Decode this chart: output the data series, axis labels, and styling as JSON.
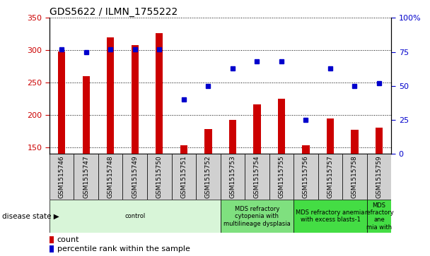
{
  "title": "GDS5622 / ILMN_1755222",
  "samples": [
    "GSM1515746",
    "GSM1515747",
    "GSM1515748",
    "GSM1515749",
    "GSM1515750",
    "GSM1515751",
    "GSM1515752",
    "GSM1515753",
    "GSM1515754",
    "GSM1515755",
    "GSM1515756",
    "GSM1515757",
    "GSM1515758",
    "GSM1515759"
  ],
  "counts": [
    298,
    260,
    320,
    308,
    326,
    153,
    178,
    192,
    216,
    225,
    153,
    194,
    177,
    180
  ],
  "percentile_ranks": [
    77,
    75,
    77,
    77,
    77,
    40,
    50,
    63,
    68,
    68,
    25,
    63,
    50,
    52
  ],
  "ylim_left": [
    140,
    350
  ],
  "ylim_right": [
    0,
    100
  ],
  "yticks_left": [
    150,
    200,
    250,
    300,
    350
  ],
  "yticks_right": [
    0,
    25,
    50,
    75,
    100
  ],
  "bar_color": "#cc0000",
  "dot_color": "#0000cc",
  "tick_box_color": "#d0d0d0",
  "plot_bg": "#ffffff",
  "disease_groups": [
    {
      "label": "control",
      "start": 0,
      "end": 7,
      "color": "#d8f5d8"
    },
    {
      "label": "MDS refractory\ncytopenia with\nmultilineage dysplasia",
      "start": 7,
      "end": 10,
      "color": "#7fe07f"
    },
    {
      "label": "MDS refractory anemia\nwith excess blasts-1",
      "start": 10,
      "end": 13,
      "color": "#44dd44"
    },
    {
      "label": "MDS\nrefractory\nane\nmia with",
      "start": 13,
      "end": 14,
      "color": "#44dd44"
    }
  ],
  "legend_count": "count",
  "legend_pct": "percentile rank within the sample",
  "disease_state_label": "disease state"
}
